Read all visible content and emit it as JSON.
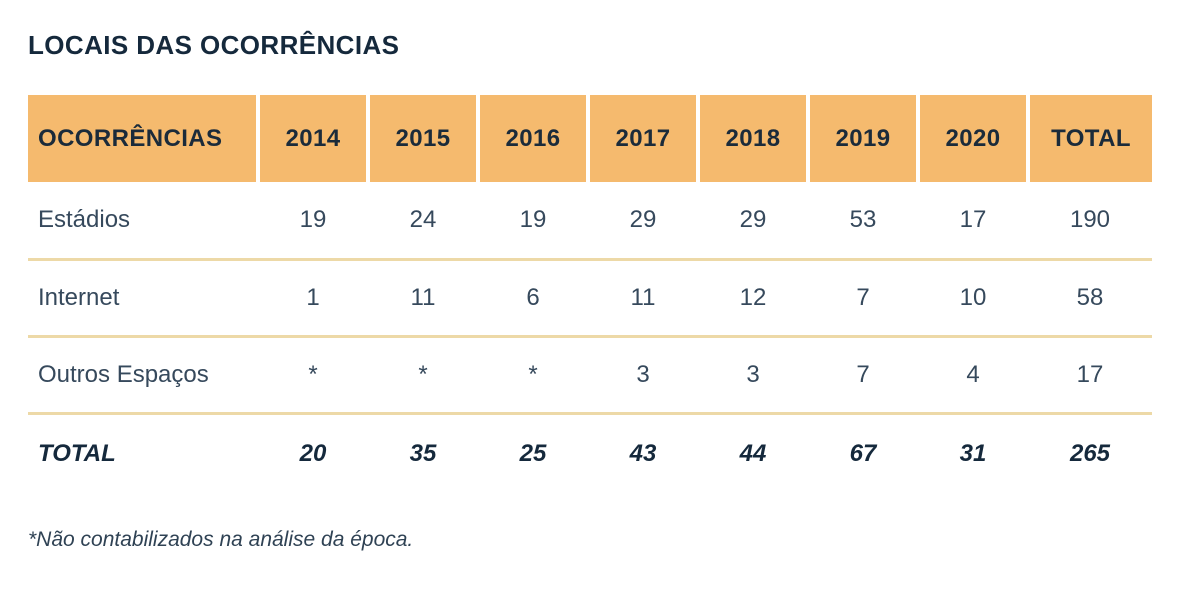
{
  "title": "LOCAIS DAS OCORRÊNCIAS",
  "table": {
    "header_bg_color": "#f5ba6e",
    "header_text_color": "#1b2b3a",
    "body_text_color": "#36495c",
    "divider_color": "#edd9a7",
    "columns": [
      "OCORRÊNCIAS",
      "2014",
      "2015",
      "2016",
      "2017",
      "2018",
      "2019",
      "2020",
      "TOTAL"
    ],
    "rows": [
      {
        "label": "Estádios",
        "values": [
          "19",
          "24",
          "19",
          "29",
          "29",
          "53",
          "17",
          "190"
        ]
      },
      {
        "label": "Internet",
        "values": [
          "1",
          "11",
          "6",
          "11",
          "12",
          "7",
          "10",
          "58"
        ]
      },
      {
        "label": "Outros Espaços",
        "values": [
          "*",
          "*",
          "*",
          "3",
          "3",
          "7",
          "4",
          "17"
        ]
      },
      {
        "label": "TOTAL",
        "values": [
          "20",
          "35",
          "25",
          "43",
          "44",
          "67",
          "31",
          "265"
        ]
      }
    ]
  },
  "footnote": "*Não contabilizados na análise da época.",
  "chart_data": {
    "type": "table",
    "title": "LOCAIS DAS OCORRÊNCIAS",
    "categories": [
      "2014",
      "2015",
      "2016",
      "2017",
      "2018",
      "2019",
      "2020",
      "TOTAL"
    ],
    "series": [
      {
        "name": "Estádios",
        "values": [
          19,
          24,
          19,
          29,
          29,
          53,
          17,
          190
        ]
      },
      {
        "name": "Internet",
        "values": [
          1,
          11,
          6,
          11,
          12,
          7,
          10,
          58
        ]
      },
      {
        "name": "Outros Espaços",
        "values": [
          null,
          null,
          null,
          3,
          3,
          7,
          4,
          17
        ]
      },
      {
        "name": "TOTAL",
        "values": [
          20,
          35,
          25,
          43,
          44,
          67,
          31,
          265
        ]
      }
    ],
    "annotations": [
      "*Não contabilizados na análise da época."
    ]
  }
}
